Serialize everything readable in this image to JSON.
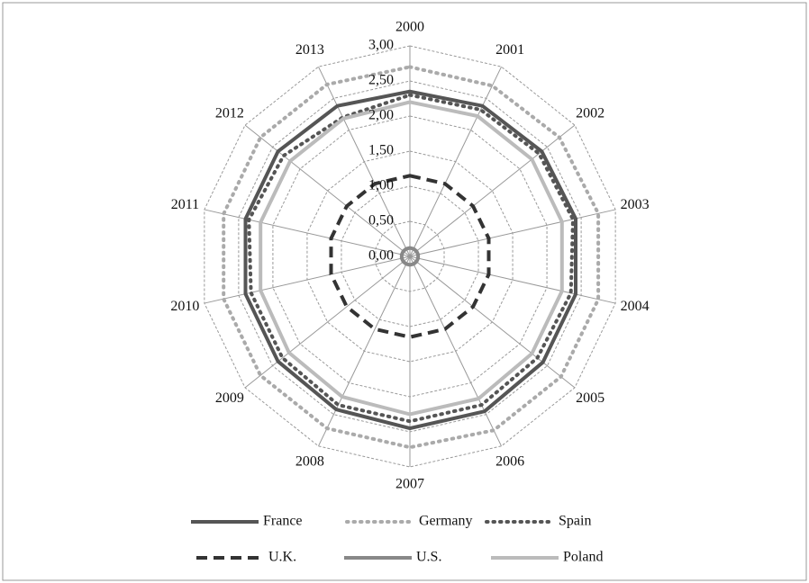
{
  "chart_data": {
    "type": "radar",
    "categories": [
      "2000",
      "2001",
      "2002",
      "2003",
      "2004",
      "2005",
      "2006",
      "2007",
      "2008",
      "2009",
      "2010",
      "2011",
      "2012",
      "2013"
    ],
    "ylim": [
      0,
      3
    ],
    "yticks": [
      {
        "value": 0,
        "label": "0,00"
      },
      {
        "value": 0.5,
        "label": "0,50"
      },
      {
        "value": 1,
        "label": "1,00"
      },
      {
        "value": 1.5,
        "label": "1,50"
      },
      {
        "value": 2,
        "label": "2,00"
      },
      {
        "value": 2.5,
        "label": "2,50"
      },
      {
        "value": 3,
        "label": "3,00"
      }
    ],
    "grid": true,
    "series": [
      {
        "name": "France",
        "color": "#555555",
        "style": "solid",
        "values": [
          2.35,
          2.38,
          2.4,
          2.42,
          2.42,
          2.42,
          2.45,
          2.45,
          2.42,
          2.4,
          2.4,
          2.4,
          2.4,
          2.38
        ]
      },
      {
        "name": "Germany",
        "color": "#aaaaaa",
        "style": "dotted",
        "values": [
          2.7,
          2.7,
          2.72,
          2.75,
          2.75,
          2.75,
          2.75,
          2.72,
          2.72,
          2.72,
          2.72,
          2.72,
          2.72,
          2.72
        ]
      },
      {
        "name": "Spain",
        "color": "#555555",
        "style": "dotted",
        "values": [
          2.3,
          2.32,
          2.35,
          2.38,
          2.35,
          2.32,
          2.35,
          2.35,
          2.35,
          2.32,
          2.32,
          2.35,
          2.3,
          2.2
        ]
      },
      {
        "name": "U.K.",
        "color": "#333333",
        "style": "dashed",
        "values": [
          1.15,
          1.15,
          1.15,
          1.15,
          1.15,
          1.15,
          1.15,
          1.15,
          1.15,
          1.15,
          1.15,
          1.15,
          1.15,
          1.15
        ]
      },
      {
        "name": "U.S.",
        "color": "#888888",
        "style": "solid",
        "values": [
          0.12,
          0.12,
          0.12,
          0.12,
          0.12,
          0.12,
          0.12,
          0.12,
          0.12,
          0.12,
          0.12,
          0.12,
          0.12,
          0.12
        ]
      },
      {
        "name": "Poland",
        "color": "#bbbbbb",
        "style": "solid",
        "values": [
          2.2,
          2.22,
          2.22,
          2.22,
          2.22,
          2.22,
          2.25,
          2.25,
          2.22,
          2.2,
          2.18,
          2.18,
          2.18,
          2.18
        ]
      }
    ]
  }
}
